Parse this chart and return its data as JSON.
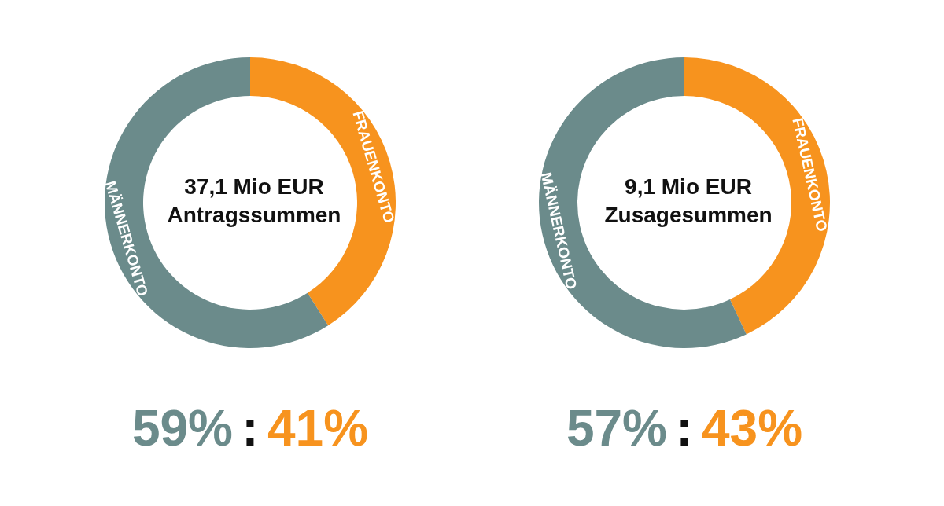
{
  "chart_data": [
    {
      "type": "donut",
      "title": "37,1 Mio EUR",
      "subtitle": "Antragssummen",
      "categories": [
        "FRAUENKONTO",
        "MÄNNERKONTO"
      ],
      "values": [
        41,
        59
      ],
      "colors": [
        "#f7931e",
        "#6b8b8b"
      ],
      "annotations": [
        "59%",
        ":",
        "41%"
      ],
      "legend": false
    },
    {
      "type": "donut",
      "title": "9,1 Mio EUR",
      "subtitle": "Zusagesummen",
      "categories": [
        "FRAUENKONTO",
        "MÄNNERKONTO"
      ],
      "values": [
        43,
        57
      ],
      "colors": [
        "#f7931e",
        "#6b8b8b"
      ],
      "annotations": [
        "57%",
        ":",
        "43%"
      ],
      "legend": false
    }
  ]
}
